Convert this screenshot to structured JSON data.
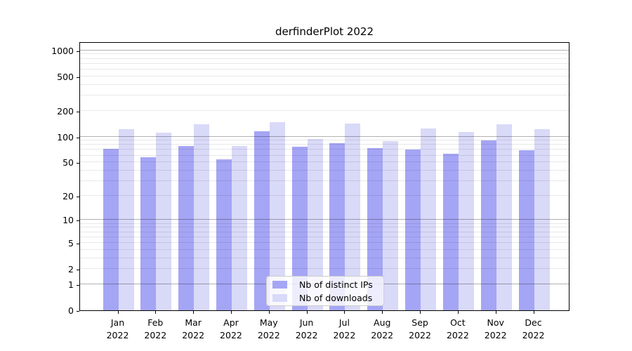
{
  "chart_data": {
    "type": "bar",
    "title": "derfinderPlot 2022",
    "x_categories": [
      {
        "month": "Jan",
        "year": "2022"
      },
      {
        "month": "Feb",
        "year": "2022"
      },
      {
        "month": "Mar",
        "year": "2022"
      },
      {
        "month": "Apr",
        "year": "2022"
      },
      {
        "month": "May",
        "year": "2022"
      },
      {
        "month": "Jun",
        "year": "2022"
      },
      {
        "month": "Jul",
        "year": "2022"
      },
      {
        "month": "Aug",
        "year": "2022"
      },
      {
        "month": "Sep",
        "year": "2022"
      },
      {
        "month": "Oct",
        "year": "2022"
      },
      {
        "month": "Nov",
        "year": "2022"
      },
      {
        "month": "Dec",
        "year": "2022"
      }
    ],
    "series": [
      {
        "name": "Nb of distinct IPs",
        "color": "#a5a5f5",
        "values": [
          72,
          57,
          78,
          54,
          115,
          76,
          83,
          73,
          71,
          63,
          90,
          69
        ]
      },
      {
        "name": "Nb of downloads",
        "color": "#d9d9f8",
        "values": [
          122,
          112,
          140,
          77,
          148,
          94,
          141,
          89,
          125,
          113,
          138,
          122
        ]
      }
    ],
    "y_ticks": [
      0,
      1,
      2,
      5,
      10,
      20,
      50,
      100,
      200,
      500,
      1000
    ],
    "y_scale": "log10(1+x)",
    "y_axis_top_value": 1265,
    "grid": "horizontal, minor log subdivisions",
    "legend_position": "lower center",
    "colors": {
      "major_gridline": "#b3b3b3",
      "minor_gridline": "#e8e8e8",
      "axis": "#000000",
      "background": "#ffffff"
    }
  }
}
